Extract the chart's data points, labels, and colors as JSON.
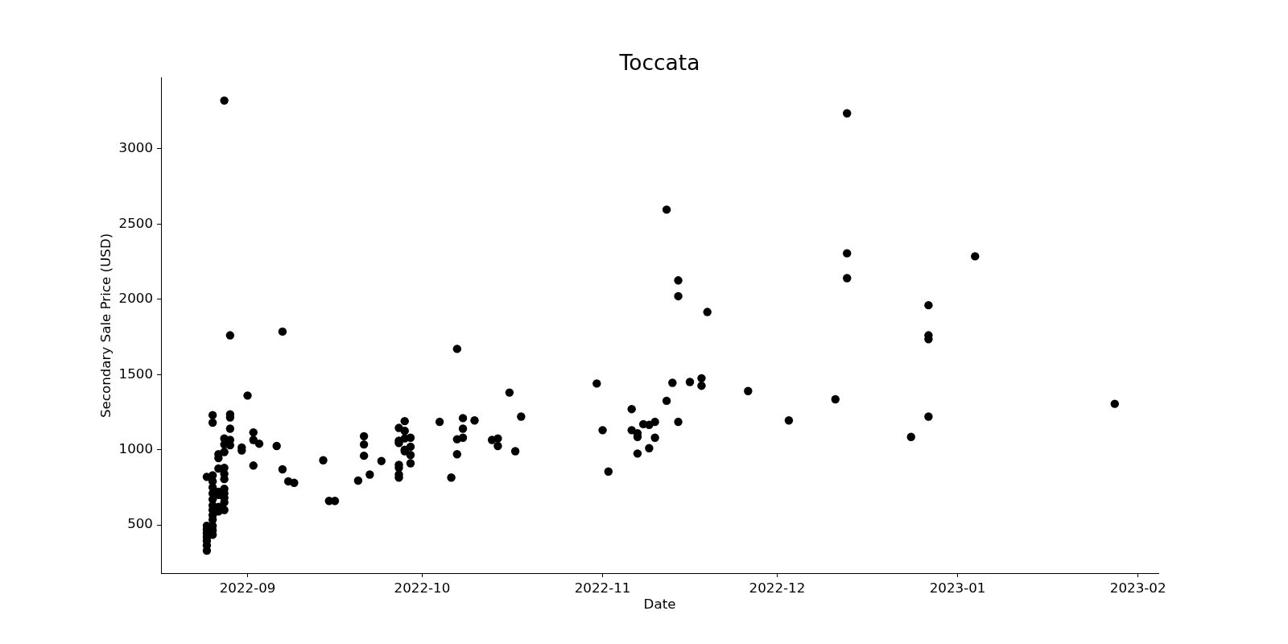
{
  "chart_data": {
    "type": "scatter",
    "title": "Toccata",
    "xlabel": "Date",
    "ylabel": "Secondary Sale Price (USD)",
    "x": [
      "2022-08-25",
      "2022-08-25",
      "2022-08-25",
      "2022-08-25",
      "2022-08-25",
      "2022-08-25",
      "2022-08-25",
      "2022-08-25",
      "2022-08-26",
      "2022-08-26",
      "2022-08-26",
      "2022-08-26",
      "2022-08-26",
      "2022-08-26",
      "2022-08-26",
      "2022-08-26",
      "2022-08-26",
      "2022-08-26",
      "2022-08-26",
      "2022-08-26",
      "2022-08-26",
      "2022-08-26",
      "2022-08-27",
      "2022-08-27",
      "2022-08-27",
      "2022-08-27",
      "2022-08-27",
      "2022-08-27",
      "2022-08-27",
      "2022-08-28",
      "2022-08-28",
      "2022-08-28",
      "2022-08-28",
      "2022-08-28",
      "2022-08-28",
      "2022-08-28",
      "2022-08-28",
      "2022-08-28",
      "2022-08-28",
      "2022-08-28",
      "2022-08-28",
      "2022-08-29",
      "2022-08-29",
      "2022-08-29",
      "2022-08-29",
      "2022-08-29",
      "2022-08-29",
      "2022-08-31",
      "2022-08-31",
      "2022-09-01",
      "2022-09-02",
      "2022-09-02",
      "2022-09-02",
      "2022-09-03",
      "2022-09-06",
      "2022-09-07",
      "2022-09-07",
      "2022-09-08",
      "2022-09-09",
      "2022-09-14",
      "2022-09-15",
      "2022-09-16",
      "2022-09-20",
      "2022-09-21",
      "2022-09-21",
      "2022-09-21",
      "2022-09-22",
      "2022-09-24",
      "2022-09-27",
      "2022-09-27",
      "2022-09-27",
      "2022-09-27",
      "2022-09-27",
      "2022-09-27",
      "2022-09-27",
      "2022-09-28",
      "2022-09-28",
      "2022-09-28",
      "2022-09-28",
      "2022-09-28",
      "2022-09-29",
      "2022-09-29",
      "2022-09-29",
      "2022-09-29",
      "2022-10-04",
      "2022-10-06",
      "2022-10-07",
      "2022-10-07",
      "2022-10-07",
      "2022-10-08",
      "2022-10-08",
      "2022-10-08",
      "2022-10-10",
      "2022-10-13",
      "2022-10-14",
      "2022-10-14",
      "2022-10-16",
      "2022-10-17",
      "2022-10-18",
      "2022-10-31",
      "2022-11-01",
      "2022-11-02",
      "2022-11-06",
      "2022-11-06",
      "2022-11-07",
      "2022-11-07",
      "2022-11-07",
      "2022-11-08",
      "2022-11-09",
      "2022-11-09",
      "2022-11-10",
      "2022-11-10",
      "2022-11-12",
      "2022-11-12",
      "2022-11-13",
      "2022-11-14",
      "2022-11-14",
      "2022-11-14",
      "2022-11-16",
      "2022-11-18",
      "2022-11-18",
      "2022-11-19",
      "2022-11-26",
      "2022-12-03",
      "2022-12-11",
      "2022-12-13",
      "2022-12-13",
      "2022-12-13",
      "2022-12-24",
      "2022-12-27",
      "2022-12-27",
      "2022-12-27",
      "2022-12-27",
      "2023-01-04",
      "2023-01-28"
    ],
    "values": [
      820,
      495,
      470,
      445,
      420,
      395,
      365,
      330,
      1230,
      1180,
      830,
      790,
      750,
      710,
      670,
      630,
      600,
      565,
      535,
      495,
      465,
      435,
      970,
      945,
      875,
      720,
      700,
      620,
      590,
      3320,
      1075,
      1035,
      985,
      880,
      840,
      805,
      740,
      710,
      680,
      650,
      600,
      1760,
      1235,
      1215,
      1140,
      1065,
      1030,
      1015,
      995,
      1360,
      1115,
      1065,
      895,
      1040,
      1025,
      1785,
      870,
      790,
      780,
      930,
      660,
      660,
      795,
      1090,
      1035,
      960,
      835,
      925,
      1145,
      1060,
      1045,
      900,
      880,
      835,
      815,
      1190,
      1125,
      1075,
      1000,
      990,
      1080,
      1020,
      965,
      910,
      1185,
      815,
      1670,
      1070,
      970,
      1210,
      1140,
      1080,
      1195,
      1065,
      1075,
      1025,
      1380,
      990,
      1220,
      1440,
      1130,
      855,
      1270,
      1130,
      1110,
      1085,
      975,
      1170,
      1165,
      1010,
      1185,
      1080,
      2595,
      1325,
      1445,
      2125,
      2020,
      1185,
      1450,
      1475,
      1425,
      1915,
      1390,
      1195,
      1335,
      3235,
      2305,
      2140,
      1085,
      1960,
      1760,
      1735,
      1220,
      2285,
      1305
    ],
    "color": "#000000",
    "marker": "circle",
    "xlim": [
      "2022-08-17T03:00",
      "2023-02-04T12:00"
    ],
    "xticks": [
      "2022-09",
      "2022-10",
      "2022-11",
      "2022-12",
      "2023-01",
      "2023-02"
    ],
    "ylim": [
      180,
      3470
    ],
    "yticks": [
      500,
      1000,
      1500,
      2000,
      2500,
      3000
    ]
  }
}
